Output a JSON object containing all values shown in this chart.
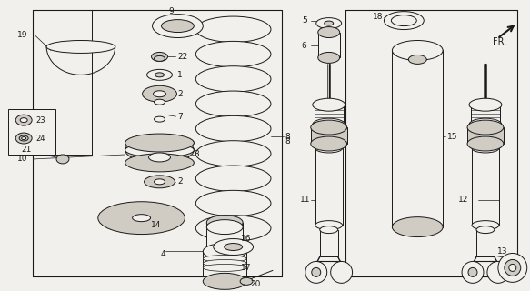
{
  "bg_color": "#f2f0ec",
  "line_color": "#1a1a1a",
  "figsize": [
    5.83,
    3.2
  ],
  "dpi": 100,
  "gray_fill": "#d0ccc4",
  "white_fill": "#f2f0ec"
}
